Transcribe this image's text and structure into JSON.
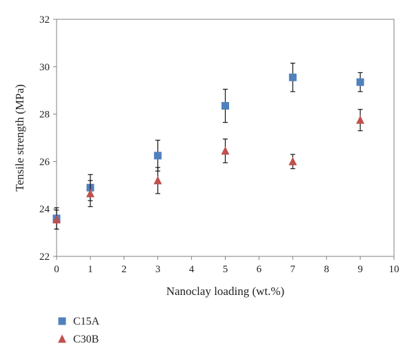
{
  "chart_data": {
    "type": "scatter",
    "title": "",
    "xlabel": "Nanoclay loading (wt.%)",
    "ylabel": "Tensile strength (MPa)",
    "xlim": [
      0,
      10
    ],
    "ylim": [
      22,
      32
    ],
    "xticks": [
      "0",
      "1",
      "2",
      "3",
      "4",
      "5",
      "6",
      "7",
      "8",
      "9",
      "10"
    ],
    "yticks": [
      "22",
      "24",
      "26",
      "28",
      "30",
      "32"
    ],
    "grid": false,
    "legend_position": "bottom-left",
    "series": [
      {
        "name": "C15A",
        "marker": "square",
        "color": "#4f81bd",
        "x": [
          0,
          1,
          3,
          5,
          7,
          9
        ],
        "y": [
          23.6,
          24.9,
          26.25,
          28.35,
          29.55,
          29.35
        ],
        "err": [
          0.45,
          0.55,
          0.65,
          0.7,
          0.6,
          0.4
        ]
      },
      {
        "name": "C30B",
        "marker": "triangle",
        "color": "#c0504d",
        "x": [
          0,
          1,
          3,
          5,
          7,
          9
        ],
        "y": [
          23.55,
          24.65,
          25.2,
          26.45,
          26.0,
          27.75
        ],
        "err": [
          0.4,
          0.55,
          0.55,
          0.5,
          0.3,
          0.45
        ]
      }
    ]
  }
}
